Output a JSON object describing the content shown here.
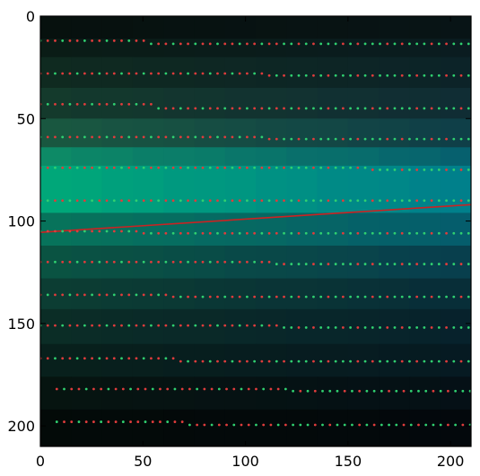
{
  "chart_data": {
    "type": "heatmap",
    "title": "",
    "xlabel": "",
    "ylabel": "",
    "xlim": [
      0,
      210
    ],
    "ylim": [
      210,
      0
    ],
    "y_axis_inverted": true,
    "grid": false,
    "x_ticks": [
      "0",
      "50",
      "100",
      "150",
      "200"
    ],
    "y_ticks": [
      "0",
      "50",
      "100",
      "150",
      "200"
    ],
    "image_colormap": "dark green-to-teal blocky intensity image, brightest band near rows 73-96 on the left",
    "image_bands": [
      {
        "y0": 0,
        "y1": 11,
        "left": "#07110e",
        "right": "#081416"
      },
      {
        "y0": 11,
        "y1": 20,
        "left": "#0a1c16",
        "right": "#0a1c20"
      },
      {
        "y0": 20,
        "y1": 35,
        "left": "#0f2a20",
        "right": "#0c2328"
      },
      {
        "y0": 35,
        "y1": 50,
        "left": "#143a2c",
        "right": "#102c34"
      },
      {
        "y0": 50,
        "y1": 64,
        "left": "#1a5840",
        "right": "#0f3e48"
      },
      {
        "y0": 64,
        "y1": 73,
        "left": "#0d8a66",
        "right": "#06606e"
      },
      {
        "y0": 73,
        "y1": 96,
        "left": "#00a878",
        "right": "#007e8c"
      },
      {
        "y0": 96,
        "y1": 112,
        "left": "#07745a",
        "right": "#055c6c"
      },
      {
        "y0": 112,
        "y1": 128,
        "left": "#0a5442",
        "right": "#083e4e"
      },
      {
        "y0": 128,
        "y1": 143,
        "left": "#0c3e33",
        "right": "#082d38"
      },
      {
        "y0": 143,
        "y1": 160,
        "left": "#0b2d26",
        "right": "#07222c"
      },
      {
        "y0": 160,
        "y1": 176,
        "left": "#08201c",
        "right": "#061a22"
      },
      {
        "y0": 176,
        "y1": 192,
        "left": "#061410",
        "right": "#051016"
      },
      {
        "y0": 192,
        "y1": 210,
        "left": "#030a08",
        "right": "#03080c"
      }
    ],
    "series": [
      {
        "type": "line",
        "color": "#cc2222",
        "x": [
          0,
          210
        ],
        "y": [
          105.5,
          92
        ]
      },
      {
        "type": "scatter-rows",
        "colors": [
          "#e03c3c",
          "#30d070"
        ],
        "x_start": 0,
        "x_end": 210,
        "x_step": 3.6,
        "rows": [
          {
            "y_left": 12,
            "y_right": 13.5,
            "step_at": 52
          },
          {
            "y_left": 28,
            "y_right": 29,
            "step_at": 108
          },
          {
            "y_left": 43,
            "y_right": 45,
            "step_at": 55
          },
          {
            "y_left": 59,
            "y_right": 60,
            "step_at": 110
          },
          {
            "y_left": 74,
            "y_right": 75,
            "step_at": 160
          },
          {
            "y_left": 90,
            "y_right": 90,
            "step_at": 118
          },
          {
            "y_left": 105,
            "y_right": 106,
            "step_at": 48
          },
          {
            "y_left": 120,
            "y_right": 121,
            "step_at": 115
          },
          {
            "y_left": 136,
            "y_right": 137,
            "step_at": 62
          },
          {
            "y_left": 151,
            "y_right": 152,
            "step_at": 118
          },
          {
            "y_left": 167,
            "y_right": 168.5,
            "step_at": 68
          },
          {
            "y_left": 182,
            "y_right": 183,
            "step_at": 120
          },
          {
            "y_left": 198,
            "y_right": 199.5,
            "step_at": 72
          }
        ],
        "row_x_start": {
          "182": 8,
          "198": 8
        }
      }
    ]
  }
}
